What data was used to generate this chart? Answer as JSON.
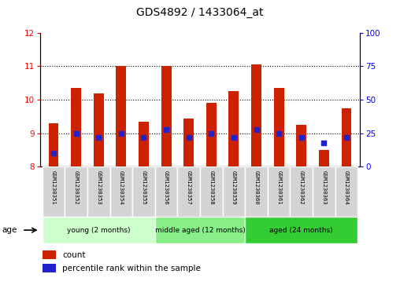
{
  "title": "GDS4892 / 1433064_at",
  "samples": [
    "GSM1230351",
    "GSM1230352",
    "GSM1230353",
    "GSM1230354",
    "GSM1230355",
    "GSM1230356",
    "GSM1230357",
    "GSM1230358",
    "GSM1230359",
    "GSM1230360",
    "GSM1230361",
    "GSM1230362",
    "GSM1230363",
    "GSM1230364"
  ],
  "counts": [
    9.3,
    10.35,
    10.2,
    11.0,
    9.35,
    11.0,
    9.45,
    9.9,
    10.25,
    11.05,
    10.35,
    9.25,
    8.5,
    9.75
  ],
  "percentile_ranks": [
    10,
    25,
    22,
    25,
    22,
    28,
    22,
    25,
    22,
    28,
    25,
    22,
    18,
    22
  ],
  "bar_color": "#cc2200",
  "dot_color": "#2222cc",
  "ylim_left": [
    8,
    12
  ],
  "ylim_right": [
    0,
    100
  ],
  "yticks_left": [
    8,
    9,
    10,
    11,
    12
  ],
  "yticks_right": [
    0,
    25,
    50,
    75,
    100
  ],
  "groups": [
    {
      "label": "young (2 months)",
      "start": 0,
      "end": 5,
      "color": "#ccffcc"
    },
    {
      "label": "middle aged (12 months)",
      "start": 5,
      "end": 9,
      "color": "#88ee88"
    },
    {
      "label": "aged (24 months)",
      "start": 9,
      "end": 14,
      "color": "#33cc33"
    }
  ],
  "age_label": "age",
  "legend_count_label": "count",
  "legend_percentile_label": "percentile rank within the sample",
  "bar_bottom": 8.0,
  "dot_size": 22,
  "bar_width": 0.45,
  "dotted_lines": [
    9,
    10,
    11
  ]
}
